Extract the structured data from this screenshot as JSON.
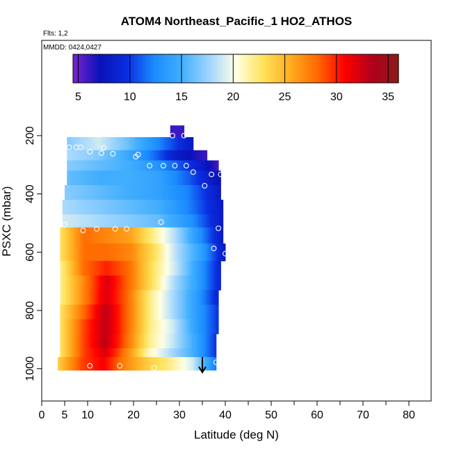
{
  "chart_data": {
    "type": "heatmap",
    "title": "ATOM4 Northeast_Pacific_1 HO2_ATHOS",
    "notes": [
      "Flts: 1,2",
      "MMDD: 0424,0427"
    ],
    "xlabel": "Latitude (deg N)",
    "ylabel": "PSXC (mbar)",
    "xlim": [
      0,
      85
    ],
    "ylim": [
      1000,
      150
    ],
    "y_reversed": true,
    "x_ticks": [
      0,
      5,
      10,
      20,
      30,
      40,
      50,
      60,
      70,
      80
    ],
    "y_ticks": [
      200,
      400,
      600,
      800,
      1000
    ],
    "colorbar": {
      "min": 4.5,
      "max": 36,
      "ticks": [
        5,
        10,
        15,
        20,
        25,
        30,
        35
      ],
      "colors": [
        "#7b22cf",
        "#0a12b8",
        "#0a2ee0",
        "#1a8cff",
        "#41aefd",
        "#9dd4ff",
        "#ffffe6",
        "#ffe35c",
        "#ffad20",
        "#ff6a00",
        "#ff0000",
        "#b3001a",
        "#8b1a1a"
      ]
    },
    "bands": [
      {
        "p": [
          165,
          205
        ],
        "x": [
          28,
          31
        ],
        "v": [
          6,
          6
        ]
      },
      {
        "p": [
          205,
          250
        ],
        "x": [
          5.5,
          33
        ],
        "v": [
          17,
          19,
          16,
          12,
          8
        ]
      },
      {
        "p": [
          250,
          285
        ],
        "x": [
          5.5,
          36
        ],
        "v": [
          18,
          17,
          15,
          12,
          8,
          6
        ]
      },
      {
        "p": [
          285,
          320
        ],
        "x": [
          5.5,
          38.5
        ],
        "v": [
          17,
          16,
          15,
          13,
          10,
          6
        ]
      },
      {
        "p": [
          320,
          370
        ],
        "x": [
          5.5,
          39
        ],
        "v": [
          16,
          15,
          15,
          14,
          11,
          7
        ]
      },
      {
        "p": [
          370,
          420
        ],
        "x": [
          5,
          39
        ],
        "v": [
          17,
          16,
          15,
          14,
          12,
          8
        ]
      },
      {
        "p": [
          420,
          470
        ],
        "x": [
          4.5,
          39.5
        ],
        "v": [
          18,
          17,
          16,
          15,
          12,
          8
        ]
      },
      {
        "p": [
          470,
          515
        ],
        "x": [
          4.5,
          39.5
        ],
        "v": [
          19,
          18,
          17,
          16,
          13,
          8
        ]
      },
      {
        "p": [
          515,
          570
        ],
        "x": [
          4,
          39.5
        ],
        "v": [
          23,
          28,
          27,
          26,
          22,
          18,
          13,
          8
        ]
      },
      {
        "p": [
          570,
          630
        ],
        "x": [
          4,
          40
        ],
        "v": [
          23,
          28,
          28,
          27,
          23,
          18,
          14,
          8
        ]
      },
      {
        "p": [
          630,
          680
        ],
        "x": [
          4,
          39
        ],
        "v": [
          22,
          28,
          30,
          28,
          23,
          19,
          14,
          9
        ]
      },
      {
        "p": [
          680,
          730
        ],
        "x": [
          4,
          39
        ],
        "v": [
          22,
          27,
          32,
          28,
          23,
          18,
          14,
          9
        ]
      },
      {
        "p": [
          730,
          780
        ],
        "x": [
          4,
          38.5
        ],
        "v": [
          22,
          27,
          32,
          28,
          22,
          18,
          14,
          9
        ]
      },
      {
        "p": [
          780,
          830
        ],
        "x": [
          4,
          38.5
        ],
        "v": [
          23,
          28,
          33,
          28,
          22,
          18,
          14,
          10
        ]
      },
      {
        "p": [
          830,
          880
        ],
        "x": [
          4,
          38.5
        ],
        "v": [
          23,
          29,
          33,
          28,
          22,
          19,
          14,
          10
        ]
      },
      {
        "p": [
          880,
          930
        ],
        "x": [
          4,
          38
        ],
        "v": [
          23,
          29,
          33,
          28,
          22,
          19,
          15,
          10
        ]
      },
      {
        "p": [
          930,
          960
        ],
        "x": [
          4,
          38
        ],
        "v": [
          23,
          29,
          32,
          27,
          21,
          18,
          15,
          10
        ]
      },
      {
        "p": [
          960,
          1005
        ],
        "x": [
          3.5,
          38
        ],
        "v": [
          24,
          29,
          31,
          27,
          24,
          22,
          19,
          12
        ]
      }
    ],
    "points": [
      {
        "x": 28.5,
        "y": 200
      },
      {
        "x": 31,
        "y": 200
      },
      {
        "x": 6,
        "y": 240
      },
      {
        "x": 7.5,
        "y": 240
      },
      {
        "x": 8.5,
        "y": 240
      },
      {
        "x": 10.5,
        "y": 255
      },
      {
        "x": 13.5,
        "y": 242
      },
      {
        "x": 13,
        "y": 260
      },
      {
        "x": 15.5,
        "y": 262
      },
      {
        "x": 20.5,
        "y": 272
      },
      {
        "x": 21,
        "y": 265
      },
      {
        "x": 23.5,
        "y": 303
      },
      {
        "x": 26.5,
        "y": 303
      },
      {
        "x": 29,
        "y": 303
      },
      {
        "x": 31.5,
        "y": 303
      },
      {
        "x": 33,
        "y": 325
      },
      {
        "x": 35.5,
        "y": 372
      },
      {
        "x": 37,
        "y": 333
      },
      {
        "x": 39,
        "y": 333
      },
      {
        "x": 5,
        "y": 505
      },
      {
        "x": 26,
        "y": 497
      },
      {
        "x": 9,
        "y": 525
      },
      {
        "x": 12,
        "y": 520
      },
      {
        "x": 16,
        "y": 520
      },
      {
        "x": 18.5,
        "y": 520
      },
      {
        "x": 38.5,
        "y": 518
      },
      {
        "x": 37.5,
        "y": 587
      },
      {
        "x": 40,
        "y": 605
      },
      {
        "x": 10.5,
        "y": 990
      },
      {
        "x": 17,
        "y": 990
      },
      {
        "x": 24.5,
        "y": 997
      },
      {
        "x": 38,
        "y": 978
      }
    ],
    "arrow": {
      "x": 35,
      "y_from": 960,
      "y_to": 1010
    }
  }
}
